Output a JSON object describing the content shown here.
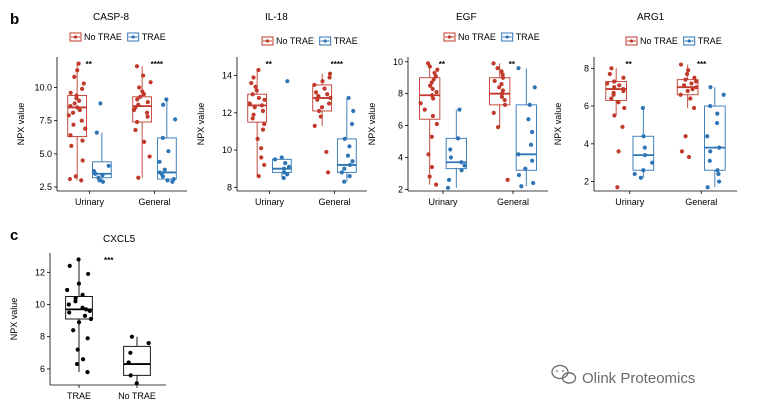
{
  "panel_b_label": "b",
  "panel_c_label": "c",
  "watermark": "Olink Proteomics",
  "colors": {
    "no_trae": "#c0392b",
    "trae": "#2e75b6",
    "black": "#000000"
  },
  "chart_data": [
    {
      "type": "box",
      "title": "CASP-8",
      "ylabel": "NPX value",
      "ylim": [
        2.2,
        12.3
      ],
      "yticks": [
        2.5,
        5.0,
        7.5,
        10.0
      ],
      "ytick_labels": [
        "2.5",
        "5.0",
        "7.5",
        "10.0"
      ],
      "categories": [
        "Urinary",
        "General"
      ],
      "legend": [
        "No TRAE",
        "TRAE"
      ],
      "significance": [
        "**",
        "****"
      ],
      "series": [
        {
          "name": "No TRAE",
          "color": "#c0392b",
          "boxes": [
            {
              "min": 3.0,
              "q1": 6.3,
              "median": 8.5,
              "q3": 9.4,
              "max": 11.8
            },
            {
              "min": 3.2,
              "q1": 7.4,
              "median": 8.6,
              "q3": 9.3,
              "max": 11.6
            }
          ],
          "points": [
            [
              3.0,
              3.1,
              3.3,
              4.5,
              5.6,
              6.0,
              6.4,
              6.9,
              7.2,
              7.5,
              7.9,
              8.1,
              8.3,
              8.5,
              8.6,
              8.8,
              9.0,
              9.2,
              9.4,
              9.6,
              9.9,
              10.3,
              10.8,
              11.3,
              11.8
            ],
            [
              3.2,
              4.8,
              5.9,
              6.8,
              7.4,
              7.8,
              8.1,
              8.3,
              8.5,
              8.7,
              8.9,
              9.1,
              9.3,
              9.5,
              9.7,
              10.0,
              10.4,
              10.9,
              11.6
            ]
          ]
        },
        {
          "name": "TRAE",
          "color": "#2e75b6",
          "boxes": [
            {
              "min": 2.9,
              "q1": 3.2,
              "median": 3.5,
              "q3": 4.4,
              "max": 6.6
            },
            {
              "min": 2.9,
              "q1": 3.1,
              "median": 3.6,
              "q3": 6.2,
              "max": 9.1
            }
          ],
          "points": [
            [
              2.9,
              3.0,
              3.2,
              3.4,
              3.5,
              3.7,
              4.1,
              6.6,
              8.8
            ],
            [
              2.9,
              3.0,
              3.1,
              3.3,
              3.5,
              3.6,
              3.8,
              4.4,
              5.2,
              6.2,
              7.6,
              8.7,
              9.1
            ]
          ]
        }
      ]
    },
    {
      "type": "box",
      "title": "IL-18",
      "ylabel": "NPX value",
      "ylim": [
        7.8,
        15.0
      ],
      "yticks": [
        8,
        10,
        12,
        14
      ],
      "ytick_labels": [
        "8",
        "10",
        "12",
        "14"
      ],
      "categories": [
        "Urinary",
        "General"
      ],
      "legend": [
        "No TRAE",
        "TRAE"
      ],
      "significance": [
        "**",
        "****"
      ],
      "series": [
        {
          "name": "No TRAE",
          "color": "#c0392b",
          "boxes": [
            {
              "min": 8.6,
              "q1": 11.5,
              "median": 12.4,
              "q3": 13.0,
              "max": 14.3
            },
            {
              "min": 11.3,
              "q1": 12.1,
              "median": 12.8,
              "q3": 13.5,
              "max": 14.1
            }
          ],
          "points": [
            [
              8.6,
              9.2,
              9.6,
              10.1,
              10.6,
              11.1,
              11.4,
              11.7,
              11.9,
              12.1,
              12.3,
              12.4,
              12.5,
              12.7,
              12.8,
              13.0,
              13.2,
              13.4,
              13.6,
              13.9,
              14.3
            ],
            [
              8.8,
              9.9,
              11.3,
              11.8,
              12.1,
              12.3,
              12.5,
              12.7,
              12.8,
              12.9,
              13.0,
              13.1,
              13.3,
              13.5,
              13.7,
              13.9,
              14.1
            ]
          ]
        },
        {
          "name": "TRAE",
          "color": "#2e75b6",
          "boxes": [
            {
              "min": 8.5,
              "q1": 8.8,
              "median": 9.0,
              "q3": 9.5,
              "max": 9.6
            },
            {
              "min": 8.3,
              "q1": 8.8,
              "median": 9.2,
              "q3": 10.6,
              "max": 12.8
            }
          ],
          "points": [
            [
              8.5,
              8.7,
              8.8,
              9.0,
              9.1,
              9.3,
              9.5,
              9.6,
              13.7
            ],
            [
              8.3,
              8.6,
              8.8,
              9.0,
              9.2,
              9.4,
              9.7,
              10.2,
              10.6,
              11.4,
              12.1,
              12.8
            ]
          ]
        }
      ]
    },
    {
      "type": "box",
      "title": "EGF",
      "ylabel": "NPX value",
      "ylim": [
        1.9,
        10.3
      ],
      "yticks": [
        2,
        4,
        6,
        8,
        10
      ],
      "ytick_labels": [
        "2",
        "4",
        "6",
        "8",
        "10"
      ],
      "categories": [
        "Urinary",
        "General"
      ],
      "legend": [
        "No TRAE",
        "TRAE"
      ],
      "significance": [
        "**",
        "**"
      ],
      "series": [
        {
          "name": "No TRAE",
          "color": "#c0392b",
          "boxes": [
            {
              "min": 2.3,
              "q1": 6.4,
              "median": 7.9,
              "q3": 9.0,
              "max": 9.9
            },
            {
              "min": 5.9,
              "q1": 7.3,
              "median": 8.0,
              "q3": 9.0,
              "max": 9.9
            }
          ],
          "points": [
            [
              2.3,
              2.8,
              3.4,
              4.2,
              5.3,
              6.1,
              6.6,
              7.0,
              7.4,
              7.7,
              7.9,
              8.1,
              8.3,
              8.5,
              8.7,
              8.9,
              9.1,
              9.3,
              9.5,
              9.7,
              9.9
            ],
            [
              2.6,
              5.9,
              6.8,
              7.3,
              7.6,
              7.8,
              8.0,
              8.2,
              8.4,
              8.6,
              8.8,
              9.0,
              9.2,
              9.4,
              9.6,
              9.9
            ]
          ]
        },
        {
          "name": "TRAE",
          "color": "#2e75b6",
          "boxes": [
            {
              "min": 2.1,
              "q1": 3.3,
              "median": 3.7,
              "q3": 5.2,
              "max": 7.0
            },
            {
              "min": 2.2,
              "q1": 3.2,
              "median": 4.2,
              "q3": 7.3,
              "max": 9.6
            }
          ],
          "points": [
            [
              2.1,
              2.6,
              3.2,
              3.5,
              3.7,
              4.0,
              4.5,
              5.2,
              7.0
            ],
            [
              2.2,
              2.4,
              2.9,
              3.3,
              3.8,
              4.2,
              4.8,
              5.6,
              6.4,
              7.3,
              8.4,
              9.6
            ]
          ]
        }
      ]
    },
    {
      "type": "box",
      "title": "ARG1",
      "ylabel": "NPX value",
      "ylim": [
        1.5,
        8.6
      ],
      "yticks": [
        2,
        4,
        6,
        8
      ],
      "ytick_labels": [
        "2",
        "4",
        "6",
        "8"
      ],
      "categories": [
        "Urinary",
        "General"
      ],
      "legend": [
        "No TRAE",
        "TRAE"
      ],
      "significance": [
        "**",
        "***"
      ],
      "series": [
        {
          "name": "No TRAE",
          "color": "#c0392b",
          "boxes": [
            {
              "min": 5.5,
              "q1": 6.3,
              "median": 6.9,
              "q3": 7.3,
              "max": 8.0
            },
            {
              "min": 5.9,
              "q1": 6.6,
              "median": 7.0,
              "q3": 7.4,
              "max": 8.2
            }
          ],
          "points": [
            [
              1.7,
              3.6,
              4.9,
              5.5,
              5.9,
              6.2,
              6.4,
              6.6,
              6.7,
              6.8,
              6.9,
              7.0,
              7.1,
              7.2,
              7.3,
              7.5,
              7.7,
              8.0
            ],
            [
              3.3,
              3.6,
              4.4,
              5.9,
              6.4,
              6.6,
              6.8,
              6.9,
              7.0,
              7.1,
              7.2,
              7.3,
              7.4,
              7.5,
              7.7,
              7.9,
              8.2
            ]
          ]
        },
        {
          "name": "TRAE",
          "color": "#2e75b6",
          "boxes": [
            {
              "min": 2.2,
              "q1": 2.6,
              "median": 3.4,
              "q3": 4.4,
              "max": 5.9
            },
            {
              "min": 1.7,
              "q1": 2.6,
              "median": 3.8,
              "q3": 6.0,
              "max": 7.0
            }
          ],
          "points": [
            [
              2.2,
              2.4,
              2.6,
              3.0,
              3.4,
              3.8,
              4.4,
              5.9
            ],
            [
              1.7,
              2.0,
              2.4,
              2.6,
              3.1,
              3.6,
              3.8,
              4.4,
              5.1,
              5.6,
              6.0,
              6.6,
              7.0
            ]
          ]
        }
      ]
    },
    {
      "type": "box",
      "title": "CXCL5",
      "ylabel": "NPX value",
      "ylim": [
        5.0,
        13.2
      ],
      "yticks": [
        6,
        8,
        10,
        12
      ],
      "ytick_labels": [
        "6",
        "8",
        "10",
        "12"
      ],
      "categories": [
        "TRAE",
        "No TRAE"
      ],
      "significance": [
        "***"
      ],
      "series": [
        {
          "name": "",
          "color": "#000000",
          "boxes": [
            {
              "min": 5.8,
              "q1": 9.1,
              "median": 9.7,
              "q3": 10.5,
              "max": 12.8
            },
            {
              "min": 4.7,
              "q1": 5.6,
              "median": 6.3,
              "q3": 7.4,
              "max": 8.0
            }
          ],
          "points": [
            [
              5.8,
              6.3,
              6.6,
              7.2,
              7.9,
              8.4,
              8.9,
              9.1,
              9.3,
              9.5,
              9.6,
              9.7,
              9.8,
              10.0,
              10.2,
              10.4,
              10.6,
              10.9,
              11.3,
              11.9,
              12.4,
              12.8
            ],
            [
              4.7,
              5.1,
              5.6,
              6.4,
              7.0,
              7.6,
              8.0
            ]
          ]
        }
      ]
    }
  ]
}
